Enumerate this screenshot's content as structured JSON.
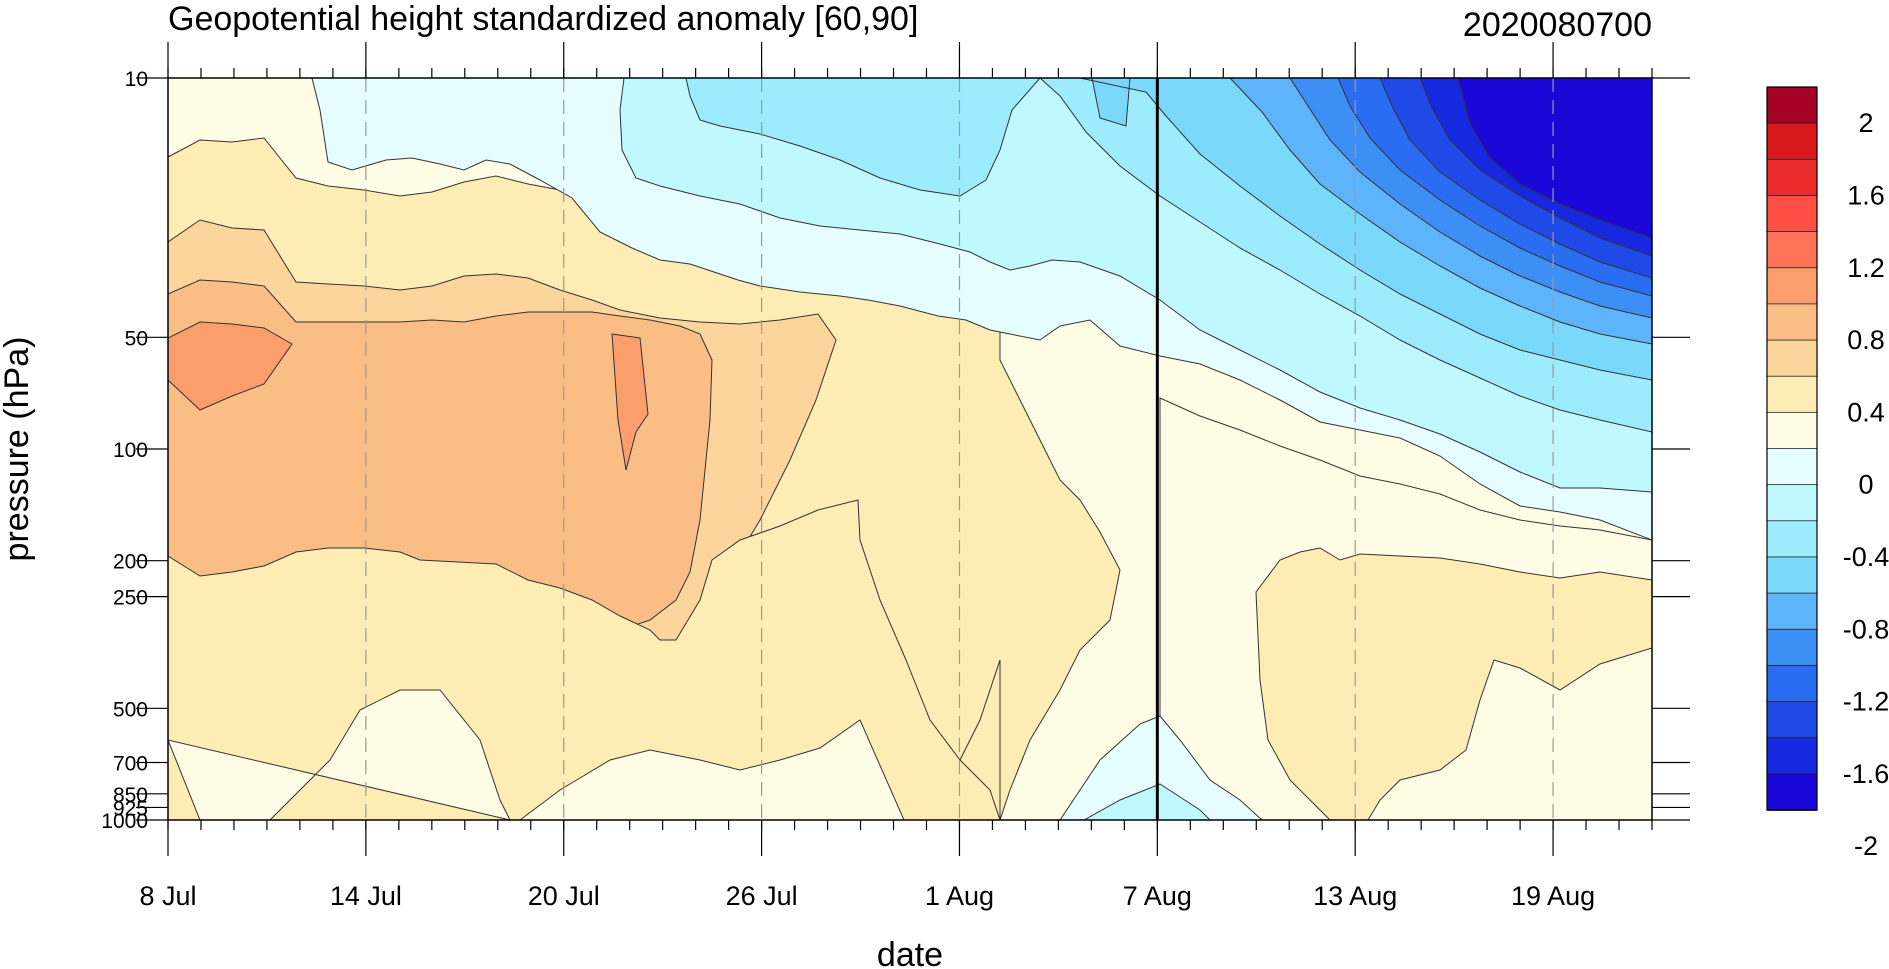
{
  "chart_data": {
    "type": "heatmap",
    "title": "Geopotential height standardized anomaly [60,90]",
    "subtitle": "2020080700",
    "xlabel": "date",
    "ylabel": "pressure (hPa)",
    "x_range_days": [
      0,
      45
    ],
    "y_range_hpa": [
      10,
      1000
    ],
    "y_scale": "log",
    "x_ticks": [
      {
        "label": "8 Jul",
        "day": 0
      },
      {
        "label": "14 Jul",
        "day": 6
      },
      {
        "label": "20 Jul",
        "day": 12
      },
      {
        "label": "26 Jul",
        "day": 18
      },
      {
        "label": "1 Aug",
        "day": 24
      },
      {
        "label": "7 Aug",
        "day": 30
      },
      {
        "label": "13 Aug",
        "day": 36
      },
      {
        "label": "19 Aug",
        "day": 42
      }
    ],
    "y_ticks": [
      {
        "label": "10",
        "p": 10
      },
      {
        "label": "50",
        "p": 50
      },
      {
        "label": "100",
        "p": 100
      },
      {
        "label": "200",
        "p": 200
      },
      {
        "label": "250",
        "p": 250
      },
      {
        "label": "500",
        "p": 500
      },
      {
        "label": "700",
        "p": 700
      },
      {
        "label": "850",
        "p": 850
      },
      {
        "label": "925",
        "p": 925
      },
      {
        "label": "1000",
        "p": 1000
      }
    ],
    "vertical_line_day": 30,
    "colorbar": {
      "labels": [
        "2",
        "1.6",
        "1.2",
        "0.8",
        "0.4",
        "0",
        "-0.4",
        "-0.8",
        "-1.2",
        "-1.6",
        "-2"
      ],
      "levels": [
        2.0,
        1.8,
        1.6,
        1.4,
        1.2,
        1.0,
        0.8,
        0.6,
        0.4,
        0.2,
        0,
        -0.2,
        -0.4,
        -0.6,
        -0.8,
        -1.0,
        -1.2,
        -1.4,
        -1.6,
        -1.8,
        -2.0
      ],
      "colors": [
        "#a50026",
        "#d7191c",
        "#ec2b2b",
        "#ff4f44",
        "#ff7356",
        "#fc9d6c",
        "#fbbd86",
        "#fcd59d",
        "#fdecb4",
        "#fefce4",
        "#e6fdff",
        "#bff8fe",
        "#9cecfd",
        "#7ad9fb",
        "#5db4fa",
        "#3d8ff5",
        "#2a6cf2",
        "#1f4ae8",
        "#1628e0",
        "#1a08d8"
      ]
    },
    "regions": [
      {
        "name": "zero-to-0.2",
        "color": "#fefce4"
      },
      {
        "name": "0.2-to-0.4",
        "color": "#fdecb4"
      },
      {
        "name": "0.4-to-0.6",
        "color": "#fcd59d"
      },
      {
        "name": "0.6-to-0.8",
        "color": "#fbbd86"
      },
      {
        "name": "0.8-to-1.0",
        "color": "#fc9d6c"
      },
      {
        "name": "minus0.2-to-0",
        "color": "#e6fdff"
      },
      {
        "name": "minus0.4-to-minus0.2",
        "color": "#bff8fe"
      },
      {
        "name": "minus0.6-to-minus0.4",
        "color": "#9cecfd"
      },
      {
        "name": "minus0.8-to-minus0.6",
        "color": "#7ad9fb"
      },
      {
        "name": "minus1.0-to-minus0.8",
        "color": "#5db4fa"
      },
      {
        "name": "minus1.2-to-minus1.0",
        "color": "#3d8ff5"
      },
      {
        "name": "minus1.4-to-minus1.2",
        "color": "#2a6cf2"
      },
      {
        "name": "minus1.6-to-minus1.4",
        "color": "#1f4ae8"
      },
      {
        "name": "minus1.8-to-minus1.6",
        "color": "#1628e0"
      },
      {
        "name": "below-minus1.8",
        "color": "#1a08d8"
      }
    ]
  }
}
